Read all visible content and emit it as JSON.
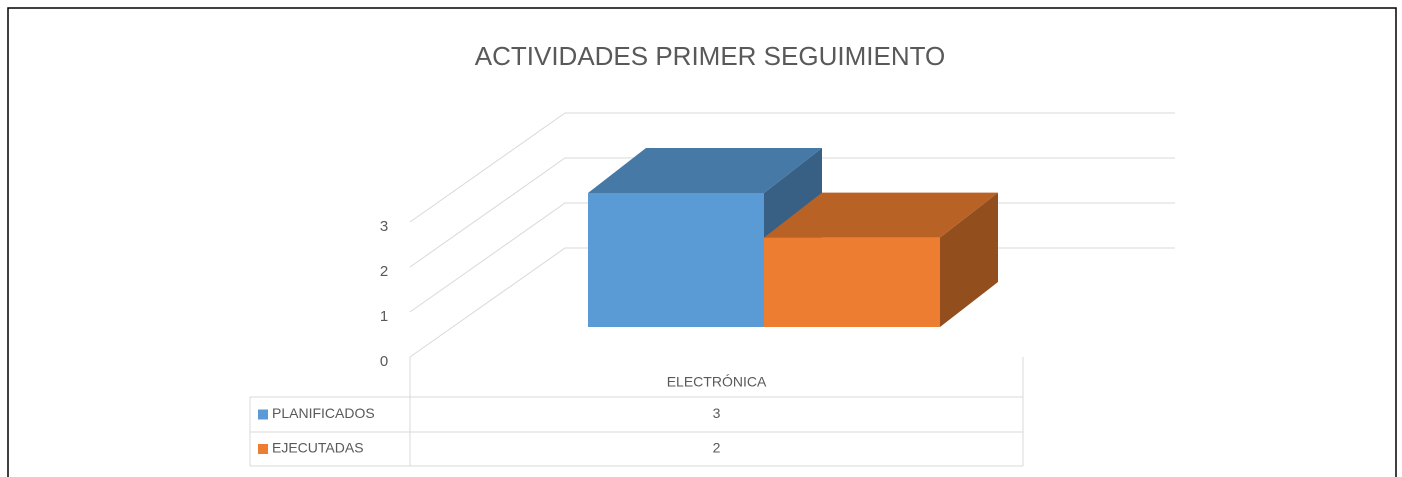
{
  "chart_data": {
    "type": "bar3d",
    "title": "ACTIVIDADES PRIMER SEGUIMIENTO",
    "categories": [
      "ELECTRÓNICA"
    ],
    "series": [
      {
        "name": "PLANIFICADOS",
        "color": "#5b9bd5",
        "values": [
          3
        ]
      },
      {
        "name": "EJECUTADAS",
        "color": "#ed7d31",
        "values": [
          2
        ]
      }
    ],
    "ylim": [
      0,
      3
    ],
    "yticks": [
      0,
      1,
      2,
      3
    ],
    "grid": true
  }
}
